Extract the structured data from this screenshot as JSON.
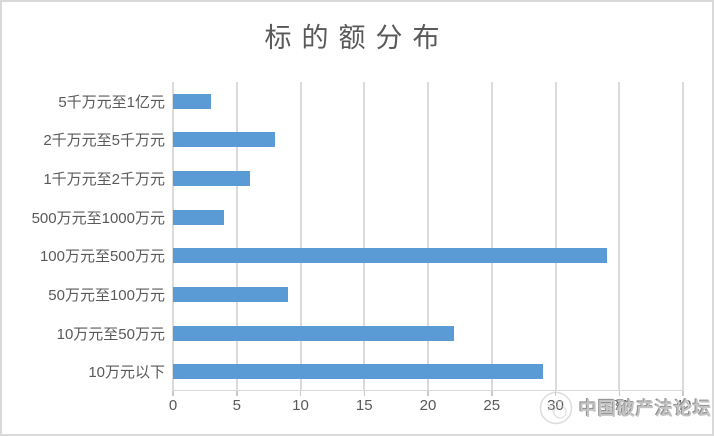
{
  "title": "标的额分布",
  "colors": {
    "bar": "#5b9bd5",
    "gridline": "#dbdbdb",
    "axis_text": "#595959",
    "title_text": "#595959",
    "border": "#d9d9d9",
    "watermark_text": "#c3c3c3"
  },
  "watermark": {
    "text": "中国破产法论坛",
    "logo_icon": "circular-emblem"
  },
  "chart_data": {
    "type": "bar",
    "orientation": "horizontal",
    "title": "标的额分布",
    "categories": [
      "5千万元至1亿元",
      "2千万元至5千万元",
      "1千万元至2千万元",
      "500万元至1000万元",
      "100万元至500万元",
      "50万元至100万元",
      "10万元至50万元",
      "10万元以下"
    ],
    "values": [
      3,
      8,
      6,
      4,
      34,
      9,
      22,
      29
    ],
    "xlabel": "",
    "ylabel": "",
    "xlim": [
      0,
      40
    ],
    "x_ticks": [
      0,
      5,
      10,
      15,
      20,
      25,
      30,
      35,
      40
    ],
    "grid": "vertical",
    "legend": "none"
  }
}
